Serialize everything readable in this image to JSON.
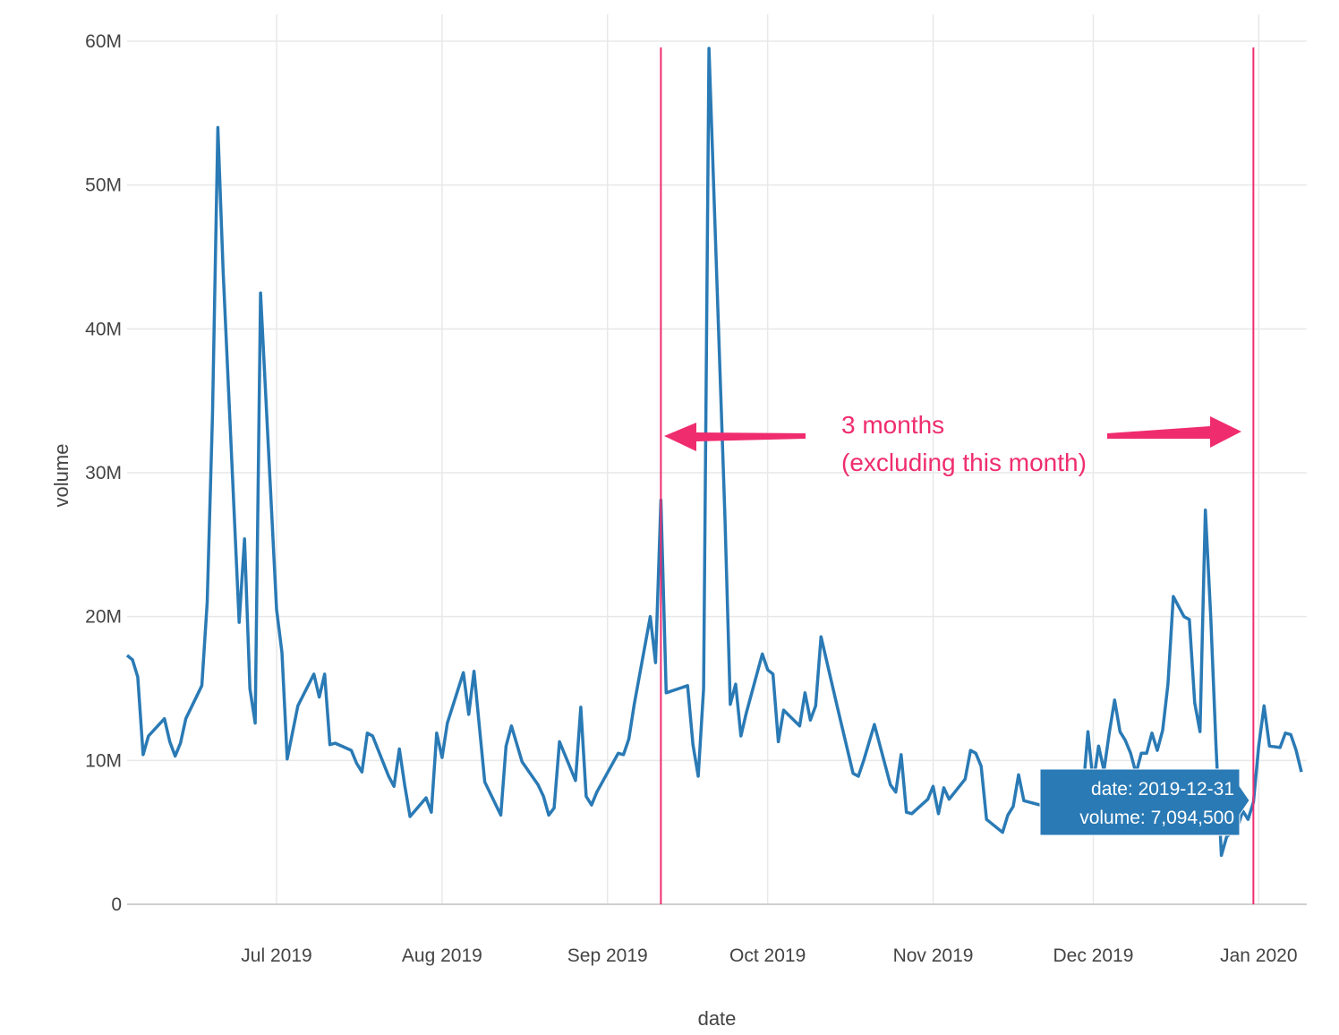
{
  "chart_data": {
    "type": "line",
    "xlabel": "date",
    "ylabel": "volume",
    "ylim": [
      0,
      60000000
    ],
    "xlim": [
      "2019-06-03",
      "2020-01-10"
    ],
    "grid": true,
    "y_ticks": [
      {
        "value": 0,
        "label": "0"
      },
      {
        "value": 10000000,
        "label": "10M"
      },
      {
        "value": 20000000,
        "label": "20M"
      },
      {
        "value": 30000000,
        "label": "30M"
      },
      {
        "value": 40000000,
        "label": "40M"
      },
      {
        "value": 50000000,
        "label": "50M"
      },
      {
        "value": 60000000,
        "label": "60M"
      }
    ],
    "x_ticks": [
      {
        "date": "2019-07-01",
        "label": "Jul 2019"
      },
      {
        "date": "2019-08-01",
        "label": "Aug 2019"
      },
      {
        "date": "2019-09-01",
        "label": "Sep 2019"
      },
      {
        "date": "2019-10-01",
        "label": "Oct 2019"
      },
      {
        "date": "2019-11-01",
        "label": "Nov 2019"
      },
      {
        "date": "2019-12-01",
        "label": "Dec 2019"
      },
      {
        "date": "2020-01-01",
        "label": "Jan 2020"
      }
    ],
    "series": [
      {
        "color": "#2a7ab5",
        "points": [
          [
            "2019-06-03",
            17300000
          ],
          [
            "2019-06-04",
            17000000
          ],
          [
            "2019-06-05",
            15800000
          ],
          [
            "2019-06-06",
            10400000
          ],
          [
            "2019-06-07",
            11700000
          ],
          [
            "2019-06-10",
            12900000
          ],
          [
            "2019-06-11",
            11300000
          ],
          [
            "2019-06-12",
            10300000
          ],
          [
            "2019-06-13",
            11200000
          ],
          [
            "2019-06-14",
            12900000
          ],
          [
            "2019-06-17",
            15200000
          ],
          [
            "2019-06-18",
            21000000
          ],
          [
            "2019-06-19",
            34000000
          ],
          [
            "2019-06-20",
            54000000
          ],
          [
            "2019-06-21",
            44000000
          ],
          [
            "2019-06-24",
            19600000
          ],
          [
            "2019-06-25",
            25400000
          ],
          [
            "2019-06-26",
            15000000
          ],
          [
            "2019-06-27",
            12600000
          ],
          [
            "2019-06-28",
            42500000
          ],
          [
            "2019-07-01",
            20500000
          ],
          [
            "2019-07-02",
            17500000
          ],
          [
            "2019-07-03",
            10100000
          ],
          [
            "2019-07-05",
            13800000
          ],
          [
            "2019-07-08",
            16000000
          ],
          [
            "2019-07-09",
            14400000
          ],
          [
            "2019-07-10",
            16000000
          ],
          [
            "2019-07-11",
            11100000
          ],
          [
            "2019-07-12",
            11200000
          ],
          [
            "2019-07-15",
            10700000
          ],
          [
            "2019-07-16",
            9800000
          ],
          [
            "2019-07-17",
            9200000
          ],
          [
            "2019-07-18",
            11900000
          ],
          [
            "2019-07-19",
            11700000
          ],
          [
            "2019-07-22",
            8900000
          ],
          [
            "2019-07-23",
            8200000
          ],
          [
            "2019-07-24",
            10800000
          ],
          [
            "2019-07-25",
            8300000
          ],
          [
            "2019-07-26",
            6100000
          ],
          [
            "2019-07-29",
            7400000
          ],
          [
            "2019-07-30",
            6400000
          ],
          [
            "2019-07-31",
            11900000
          ],
          [
            "2019-08-01",
            10200000
          ],
          [
            "2019-08-02",
            12600000
          ],
          [
            "2019-08-05",
            16100000
          ],
          [
            "2019-08-06",
            13200000
          ],
          [
            "2019-08-07",
            16200000
          ],
          [
            "2019-08-09",
            8500000
          ],
          [
            "2019-08-12",
            6200000
          ],
          [
            "2019-08-13",
            11000000
          ],
          [
            "2019-08-14",
            12400000
          ],
          [
            "2019-08-16",
            9900000
          ],
          [
            "2019-08-19",
            8300000
          ],
          [
            "2019-08-20",
            7500000
          ],
          [
            "2019-08-21",
            6200000
          ],
          [
            "2019-08-22",
            6700000
          ],
          [
            "2019-08-23",
            11300000
          ],
          [
            "2019-08-26",
            8600000
          ],
          [
            "2019-08-27",
            13700000
          ],
          [
            "2019-08-28",
            7500000
          ],
          [
            "2019-08-29",
            6900000
          ],
          [
            "2019-08-30",
            7800000
          ],
          [
            "2019-09-03",
            10500000
          ],
          [
            "2019-09-04",
            10400000
          ],
          [
            "2019-09-05",
            11500000
          ],
          [
            "2019-09-06",
            13900000
          ],
          [
            "2019-09-09",
            20000000
          ],
          [
            "2019-09-10",
            16800000
          ],
          [
            "2019-09-11",
            28100000
          ],
          [
            "2019-09-12",
            14700000
          ],
          [
            "2019-09-16",
            15200000
          ],
          [
            "2019-09-17",
            11100000
          ],
          [
            "2019-09-18",
            8900000
          ],
          [
            "2019-09-19",
            15000000
          ],
          [
            "2019-09-20",
            59500000
          ],
          [
            "2019-09-23",
            27000000
          ],
          [
            "2019-09-24",
            13900000
          ],
          [
            "2019-09-25",
            15300000
          ],
          [
            "2019-09-26",
            11700000
          ],
          [
            "2019-09-27",
            13300000
          ],
          [
            "2019-09-30",
            17400000
          ],
          [
            "2019-10-01",
            16300000
          ],
          [
            "2019-10-02",
            16000000
          ],
          [
            "2019-10-03",
            11300000
          ],
          [
            "2019-10-04",
            13500000
          ],
          [
            "2019-10-07",
            12400000
          ],
          [
            "2019-10-08",
            14700000
          ],
          [
            "2019-10-09",
            12800000
          ],
          [
            "2019-10-10",
            13800000
          ],
          [
            "2019-10-11",
            18600000
          ],
          [
            "2019-10-14",
            13800000
          ],
          [
            "2019-10-17",
            9100000
          ],
          [
            "2019-10-18",
            8900000
          ],
          [
            "2019-10-19",
            10000000
          ],
          [
            "2019-10-21",
            12500000
          ],
          [
            "2019-10-24",
            8300000
          ],
          [
            "2019-10-25",
            7800000
          ],
          [
            "2019-10-26",
            10400000
          ],
          [
            "2019-10-27",
            6400000
          ],
          [
            "2019-10-28",
            6300000
          ],
          [
            "2019-10-31",
            7300000
          ],
          [
            "2019-11-01",
            8200000
          ],
          [
            "2019-11-02",
            6300000
          ],
          [
            "2019-11-03",
            8100000
          ],
          [
            "2019-11-04",
            7300000
          ],
          [
            "2019-11-07",
            8700000
          ],
          [
            "2019-11-08",
            10700000
          ],
          [
            "2019-11-09",
            10500000
          ],
          [
            "2019-11-10",
            9600000
          ],
          [
            "2019-11-11",
            5900000
          ],
          [
            "2019-11-14",
            5000000
          ],
          [
            "2019-11-15",
            6200000
          ],
          [
            "2019-11-16",
            6800000
          ],
          [
            "2019-11-17",
            9000000
          ],
          [
            "2019-11-18",
            7200000
          ],
          [
            "2019-11-21",
            6900000
          ],
          [
            "2019-11-22",
            7100000
          ],
          [
            "2019-11-23",
            9000000
          ],
          [
            "2019-11-29",
            7500000
          ],
          [
            "2019-11-30",
            12000000
          ],
          [
            "2019-12-01",
            8400000
          ],
          [
            "2019-12-02",
            11000000
          ],
          [
            "2019-12-03",
            9300000
          ],
          [
            "2019-12-04",
            11900000
          ],
          [
            "2019-12-05",
            14200000
          ],
          [
            "2019-12-06",
            12000000
          ],
          [
            "2019-12-07",
            11400000
          ],
          [
            "2019-12-08",
            10500000
          ],
          [
            "2019-12-09",
            9100000
          ],
          [
            "2019-12-10",
            10500000
          ],
          [
            "2019-12-11",
            10500000
          ],
          [
            "2019-12-12",
            11900000
          ],
          [
            "2019-12-13",
            10700000
          ],
          [
            "2019-12-14",
            12100000
          ],
          [
            "2019-12-15",
            15300000
          ],
          [
            "2019-12-16",
            21400000
          ],
          [
            "2019-12-18",
            20000000
          ],
          [
            "2019-12-19",
            19800000
          ],
          [
            "2019-12-20",
            14000000
          ],
          [
            "2019-12-21",
            12000000
          ],
          [
            "2019-12-22",
            27400000
          ],
          [
            "2019-12-23",
            20000000
          ],
          [
            "2019-12-24",
            11000000
          ],
          [
            "2019-12-25",
            3400000
          ],
          [
            "2019-12-26",
            4700000
          ],
          [
            "2019-12-28",
            5300000
          ],
          [
            "2019-12-29",
            6500000
          ],
          [
            "2019-12-30",
            5900000
          ],
          [
            "2019-12-31",
            7094500
          ],
          [
            "2020-01-01",
            11000000
          ],
          [
            "2020-01-02",
            13800000
          ],
          [
            "2020-01-03",
            11000000
          ],
          [
            "2020-01-05",
            10900000
          ],
          [
            "2020-01-06",
            11900000
          ],
          [
            "2020-01-07",
            11800000
          ],
          [
            "2020-01-08",
            10700000
          ],
          [
            "2020-01-09",
            9200000
          ]
        ]
      }
    ],
    "vlines": [
      {
        "date": "2019-09-11",
        "color": "#ef2d6e"
      },
      {
        "date": "2019-12-31",
        "color": "#ef2d6e"
      }
    ],
    "annotation": {
      "lines": [
        "3 months",
        "(excluding this month)"
      ],
      "color": "#ef2d6e"
    },
    "hover": {
      "date_text": "date: 2019-12-31",
      "volume_text": "volume: 7,094,500",
      "background": "#2a7ab5"
    }
  }
}
